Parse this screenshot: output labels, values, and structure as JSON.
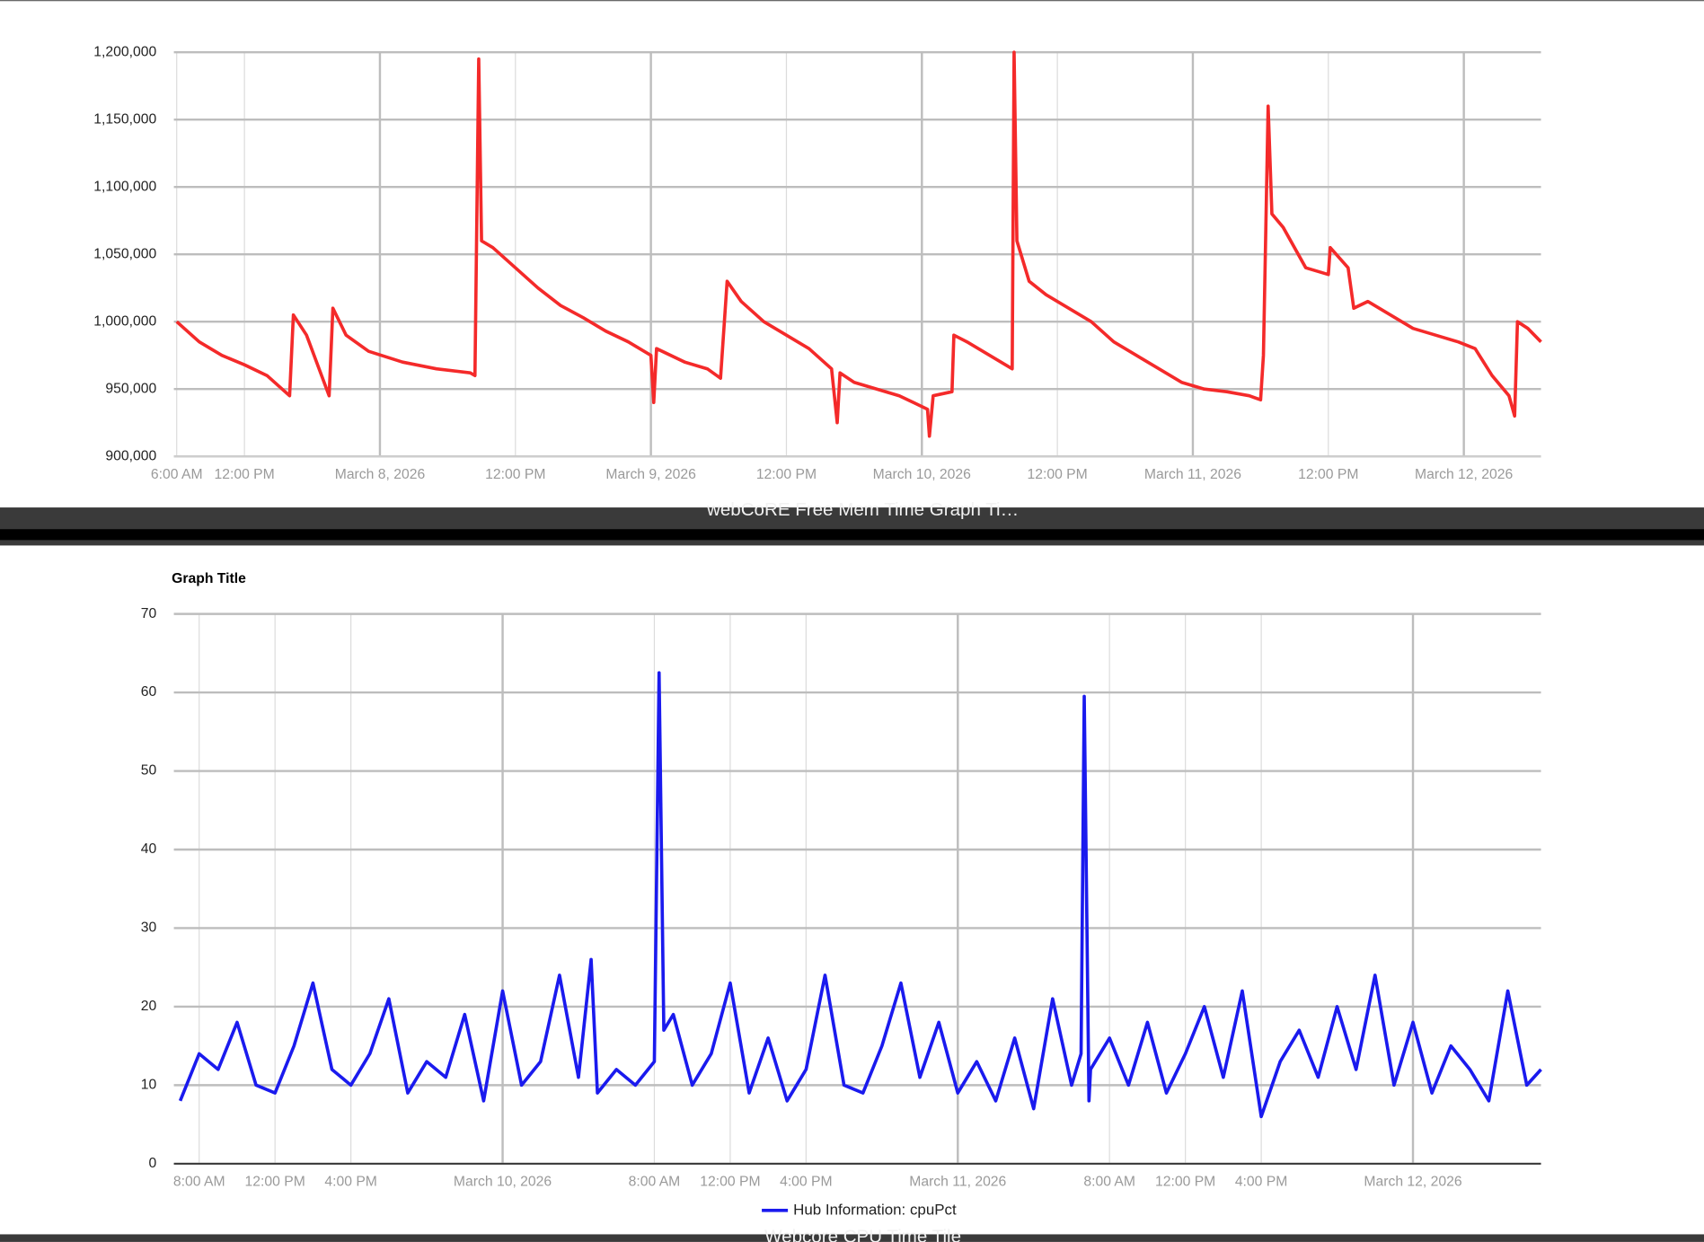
{
  "chart_data": [
    {
      "type": "line",
      "color": "#f42a2a",
      "x": [
        "2026-03-07T06:00",
        "2026-03-07T08:00",
        "2026-03-07T10:00",
        "2026-03-07T12:00",
        "2026-03-07T14:00",
        "2026-03-07T16:00",
        "2026-03-07T16:20",
        "2026-03-07T17:30",
        "2026-03-07T19:30",
        "2026-03-07T19:50",
        "2026-03-07T21:00",
        "2026-03-07T23:00",
        "2026-03-08T02:00",
        "2026-03-08T05:00",
        "2026-03-08T08:00",
        "2026-03-08T08:25",
        "2026-03-08T08:45",
        "2026-03-08T09:00",
        "2026-03-08T10:00",
        "2026-03-08T12:00",
        "2026-03-08T14:00",
        "2026-03-08T16:00",
        "2026-03-08T18:00",
        "2026-03-08T20:00",
        "2026-03-08T22:00",
        "2026-03-09T00:00",
        "2026-03-09T00:15",
        "2026-03-09T00:30",
        "2026-03-09T03:00",
        "2026-03-09T05:00",
        "2026-03-09T06:10",
        "2026-03-09T06:45",
        "2026-03-09T08:00",
        "2026-03-09T10:00",
        "2026-03-09T12:00",
        "2026-03-09T14:00",
        "2026-03-09T16:00",
        "2026-03-09T16:30",
        "2026-03-09T16:45",
        "2026-03-09T18:00",
        "2026-03-09T20:00",
        "2026-03-09T22:00",
        "2026-03-10T00:30",
        "2026-03-10T00:40",
        "2026-03-10T01:00",
        "2026-03-10T02:40",
        "2026-03-10T02:50",
        "2026-03-10T04:00",
        "2026-03-10T06:00",
        "2026-03-10T08:00",
        "2026-03-10T08:10",
        "2026-03-10T08:25",
        "2026-03-10T09:30",
        "2026-03-10T11:00",
        "2026-03-10T13:00",
        "2026-03-10T15:00",
        "2026-03-10T17:00",
        "2026-03-10T19:00",
        "2026-03-10T21:00",
        "2026-03-10T23:00",
        "2026-03-11T01:00",
        "2026-03-11T03:00",
        "2026-03-11T05:00",
        "2026-03-11T06:00",
        "2026-03-11T06:15",
        "2026-03-11T06:40",
        "2026-03-11T07:00",
        "2026-03-11T08:00",
        "2026-03-11T10:00",
        "2026-03-11T12:00",
        "2026-03-11T12:10",
        "2026-03-11T13:45",
        "2026-03-11T14:15",
        "2026-03-11T15:30",
        "2026-03-11T17:30",
        "2026-03-11T19:30",
        "2026-03-11T21:30",
        "2026-03-11T23:30",
        "2026-03-12T01:00",
        "2026-03-12T02:30",
        "2026-03-12T04:00",
        "2026-03-12T04:30",
        "2026-03-12T04:45",
        "2026-03-12T05:40",
        "2026-03-12T06:50"
      ],
      "values": [
        1000000,
        985000,
        975000,
        968000,
        960000,
        945000,
        1005000,
        990000,
        945000,
        1010000,
        990000,
        978000,
        970000,
        965000,
        962000,
        960000,
        1195000,
        1060000,
        1055000,
        1040000,
        1025000,
        1012000,
        1003000,
        993000,
        985000,
        975000,
        940000,
        980000,
        970000,
        965000,
        958000,
        1030000,
        1015000,
        1000000,
        990000,
        980000,
        965000,
        925000,
        962000,
        955000,
        950000,
        945000,
        935000,
        915000,
        945000,
        948000,
        990000,
        985000,
        975000,
        965000,
        1200000,
        1060000,
        1030000,
        1020000,
        1010000,
        1000000,
        985000,
        975000,
        965000,
        955000,
        950000,
        948000,
        945000,
        942000,
        975000,
        1160000,
        1080000,
        1070000,
        1040000,
        1035000,
        1055000,
        1040000,
        1010000,
        1015000,
        1005000,
        995000,
        990000,
        985000,
        980000,
        960000,
        945000,
        930000,
        1000000,
        995000,
        985000
      ],
      "xlim": [
        "2026-03-07T05:45",
        "2026-03-12T06:50"
      ],
      "xticks": [
        {
          "value": "2026-03-07T06:00",
          "label": "6:00 AM"
        },
        {
          "value": "2026-03-07T12:00",
          "label": "12:00 PM"
        },
        {
          "value": "2026-03-08T00:00",
          "label": "March 8, 2026"
        },
        {
          "value": "2026-03-08T12:00",
          "label": "12:00 PM"
        },
        {
          "value": "2026-03-09T00:00",
          "label": "March 9, 2026"
        },
        {
          "value": "2026-03-09T12:00",
          "label": "12:00 PM"
        },
        {
          "value": "2026-03-10T00:00",
          "label": "March 10, 2026"
        },
        {
          "value": "2026-03-10T12:00",
          "label": "12:00 PM"
        },
        {
          "value": "2026-03-11T00:00",
          "label": "March 11, 2026"
        },
        {
          "value": "2026-03-11T12:00",
          "label": "12:00 PM"
        },
        {
          "value": "2026-03-12T00:00",
          "label": "March 12, 2026"
        }
      ],
      "ylim": [
        900000,
        1200000
      ],
      "yticks": [
        {
          "value": 900000,
          "label": "900,000"
        },
        {
          "value": 950000,
          "label": "950,000"
        },
        {
          "value": 1000000,
          "label": "1,000,000"
        },
        {
          "value": 1050000,
          "label": "1,050,000"
        },
        {
          "value": 1100000,
          "label": "1,100,000"
        },
        {
          "value": 1150000,
          "label": "1,150,000"
        },
        {
          "value": 1200000,
          "label": "1,200,000"
        }
      ],
      "grid": true
    },
    {
      "type": "line",
      "title": "Graph Title",
      "x": [
        "2026-03-09T07:00",
        "2026-03-09T08:00",
        "2026-03-09T09:00",
        "2026-03-09T10:00",
        "2026-03-09T11:00",
        "2026-03-09T12:00",
        "2026-03-09T13:00",
        "2026-03-09T14:00",
        "2026-03-09T15:00",
        "2026-03-09T16:00",
        "2026-03-09T17:00",
        "2026-03-09T18:00",
        "2026-03-09T19:00",
        "2026-03-09T20:00",
        "2026-03-09T21:00",
        "2026-03-09T22:00",
        "2026-03-09T23:00",
        "2026-03-10T00:00",
        "2026-03-10T01:00",
        "2026-03-10T02:00",
        "2026-03-10T03:00",
        "2026-03-10T04:00",
        "2026-03-10T04:40",
        "2026-03-10T05:00",
        "2026-03-10T06:00",
        "2026-03-10T07:00",
        "2026-03-10T08:00",
        "2026-03-10T08:15",
        "2026-03-10T08:30",
        "2026-03-10T09:00",
        "2026-03-10T10:00",
        "2026-03-10T11:00",
        "2026-03-10T12:00",
        "2026-03-10T13:00",
        "2026-03-10T14:00",
        "2026-03-10T15:00",
        "2026-03-10T16:00",
        "2026-03-10T17:00",
        "2026-03-10T18:00",
        "2026-03-10T19:00",
        "2026-03-10T20:00",
        "2026-03-10T21:00",
        "2026-03-10T22:00",
        "2026-03-10T23:00",
        "2026-03-11T00:00",
        "2026-03-11T01:00",
        "2026-03-11T02:00",
        "2026-03-11T03:00",
        "2026-03-11T04:00",
        "2026-03-11T05:00",
        "2026-03-11T06:00",
        "2026-03-11T06:30",
        "2026-03-11T06:40",
        "2026-03-11T06:55",
        "2026-03-11T07:00",
        "2026-03-11T08:00",
        "2026-03-11T09:00",
        "2026-03-11T10:00",
        "2026-03-11T11:00",
        "2026-03-11T12:00",
        "2026-03-11T13:00",
        "2026-03-11T14:00",
        "2026-03-11T15:00",
        "2026-03-11T16:00",
        "2026-03-11T17:00",
        "2026-03-11T18:00",
        "2026-03-11T19:00",
        "2026-03-11T20:00",
        "2026-03-11T21:00",
        "2026-03-11T22:00",
        "2026-03-11T23:00",
        "2026-03-12T00:00",
        "2026-03-12T01:00",
        "2026-03-12T02:00",
        "2026-03-12T03:00",
        "2026-03-12T04:00",
        "2026-03-12T05:00",
        "2026-03-12T06:00",
        "2026-03-12T06:45"
      ],
      "series": [
        {
          "name": "Hub Information: cpuPct",
          "color": "#1a1aee",
          "values": [
            8,
            14,
            12,
            18,
            10,
            9,
            15,
            23,
            12,
            10,
            14,
            21,
            9,
            13,
            11,
            19,
            8,
            22,
            10,
            13,
            24,
            11,
            26,
            9,
            12,
            10,
            13,
            62.5,
            17,
            19,
            10,
            14,
            23,
            9,
            16,
            8,
            12,
            24,
            10,
            9,
            15,
            23,
            11,
            18,
            9,
            13,
            8,
            16,
            7,
            21,
            10,
            14,
            59.5,
            8,
            12,
            16,
            10,
            18,
            9,
            14,
            20,
            11,
            22,
            6,
            13,
            17,
            11,
            20,
            12,
            24,
            10,
            18,
            9,
            15,
            12,
            8,
            22,
            10,
            12
          ]
        }
      ],
      "xlim": [
        "2026-03-09T06:40",
        "2026-03-12T06:45"
      ],
      "xticks": [
        {
          "value": "2026-03-09T08:00",
          "label": "8:00 AM"
        },
        {
          "value": "2026-03-09T12:00",
          "label": "12:00 PM"
        },
        {
          "value": "2026-03-09T16:00",
          "label": "4:00 PM"
        },
        {
          "value": "2026-03-10T00:00",
          "label": "March 10, 2026"
        },
        {
          "value": "2026-03-10T08:00",
          "label": "8:00 AM"
        },
        {
          "value": "2026-03-10T12:00",
          "label": "12:00 PM"
        },
        {
          "value": "2026-03-10T16:00",
          "label": "4:00 PM"
        },
        {
          "value": "2026-03-11T00:00",
          "label": "March 11, 2026"
        },
        {
          "value": "2026-03-11T08:00",
          "label": "8:00 AM"
        },
        {
          "value": "2026-03-11T12:00",
          "label": "12:00 PM"
        },
        {
          "value": "2026-03-11T16:00",
          "label": "4:00 PM"
        },
        {
          "value": "2026-03-12T00:00",
          "label": "March 12, 2026"
        }
      ],
      "ylim": [
        0,
        70
      ],
      "yticks": [
        0,
        10,
        20,
        30,
        40,
        50,
        60,
        70
      ],
      "grid": true,
      "legend": "bottom"
    }
  ],
  "tile_labels": [
    "webCoRE Free Mem Time Graph Ti…",
    "Webcore CPU Time Tile"
  ]
}
